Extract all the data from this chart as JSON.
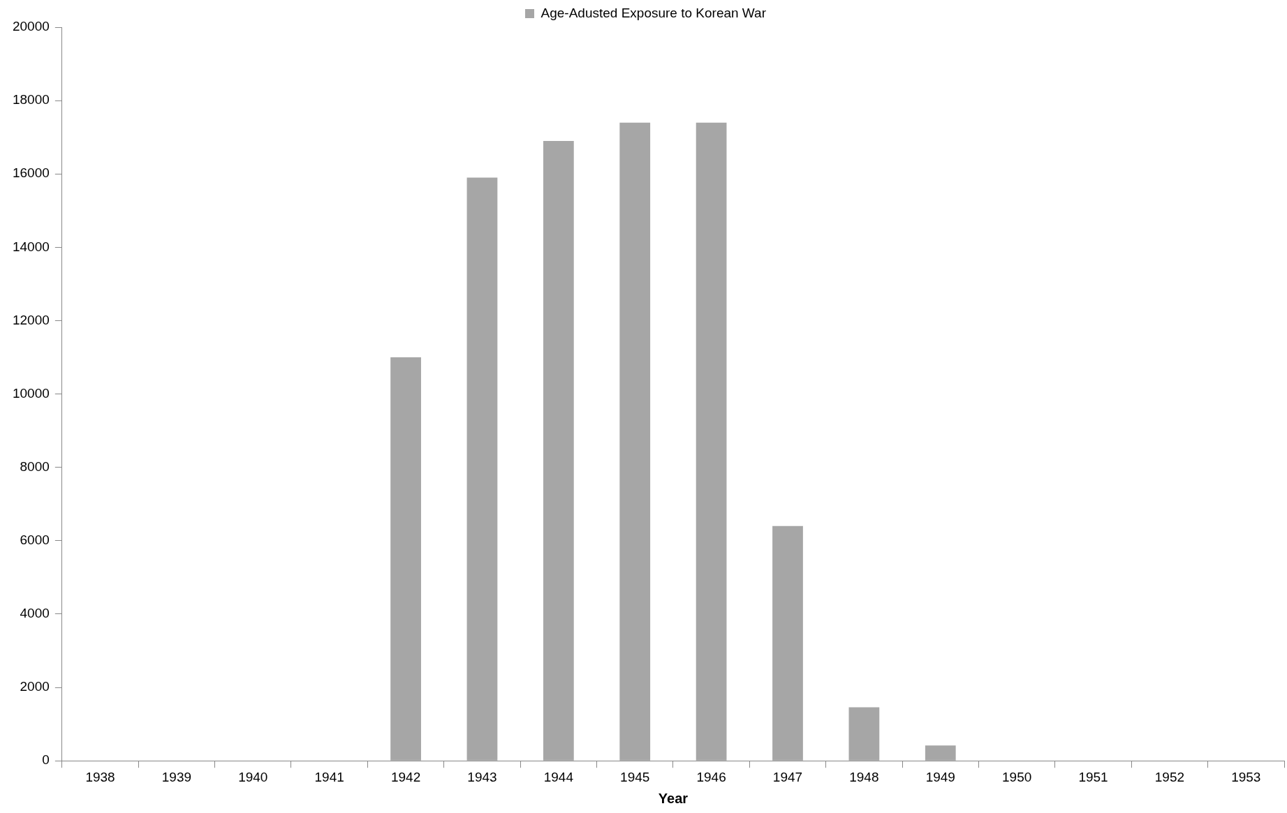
{
  "chart_data": {
    "type": "bar",
    "xlabel": "Year",
    "categories": [
      "1938",
      "1939",
      "1940",
      "1941",
      "1942",
      "1943",
      "1944",
      "1945",
      "1946",
      "1947",
      "1948",
      "1949",
      "1950",
      "1951",
      "1952",
      "1953"
    ],
    "series": [
      {
        "name": "Age-Adusted Exposure to Korean War",
        "color": "#a6a6a6",
        "values": [
          0,
          0,
          0,
          0,
          11000,
          15900,
          16900,
          17400,
          17400,
          6400,
          1460,
          420,
          0,
          0,
          0,
          0
        ]
      }
    ],
    "ylim": [
      0,
      20000
    ],
    "yticks": [
      0,
      2000,
      4000,
      6000,
      8000,
      10000,
      12000,
      14000,
      16000,
      18000,
      20000
    ],
    "grid": false,
    "legend": "top"
  }
}
